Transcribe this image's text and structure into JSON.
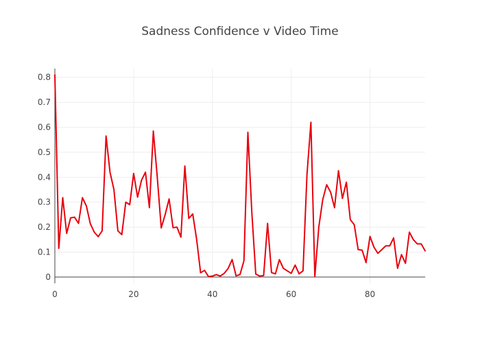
{
  "chart_data": {
    "type": "line",
    "title": "Sadness Confidence v Video Time",
    "xlabel": "",
    "ylabel": "",
    "xlim": [
      0,
      94
    ],
    "ylim": [
      -0.025,
      0.835
    ],
    "xticks": [
      0,
      20,
      40,
      60,
      80
    ],
    "yticks": [
      0,
      0.1,
      0.2,
      0.3,
      0.4,
      0.5,
      0.6,
      0.7,
      0.8
    ],
    "ytick_labels": [
      "0",
      "0.1",
      "0.2",
      "0.3",
      "0.4",
      "0.5",
      "0.6",
      "0.7",
      "0.8"
    ],
    "grid": true,
    "line_color": "#e8000b",
    "series": [
      {
        "x": [
          0,
          1,
          2,
          3,
          4,
          5,
          6,
          7,
          8,
          9,
          10,
          11,
          12,
          13,
          14,
          15,
          16,
          17,
          18,
          19,
          20,
          21,
          22,
          23,
          24,
          25,
          26,
          27,
          28,
          29,
          30,
          31,
          32,
          33,
          34,
          35,
          36,
          37,
          38,
          39,
          40,
          41,
          42,
          43,
          44,
          45,
          46,
          47,
          48,
          49,
          50,
          51,
          52,
          53,
          54,
          55,
          56,
          57,
          58,
          59,
          60,
          61,
          62,
          63,
          64,
          65,
          66,
          67,
          68,
          69,
          70,
          71,
          72,
          73,
          74,
          75,
          76,
          77,
          78,
          79,
          80,
          81,
          82,
          83,
          84,
          85,
          86,
          87,
          88,
          89,
          90,
          91,
          92,
          93,
          94
        ],
        "values": [
          0.81,
          0.115,
          0.318,
          0.175,
          0.237,
          0.24,
          0.215,
          0.318,
          0.285,
          0.214,
          0.18,
          0.162,
          0.185,
          0.565,
          0.42,
          0.35,
          0.185,
          0.17,
          0.3,
          0.29,
          0.415,
          0.32,
          0.388,
          0.42,
          0.278,
          0.585,
          0.4,
          0.197,
          0.25,
          0.313,
          0.198,
          0.2,
          0.16,
          0.445,
          0.235,
          0.253,
          0.15,
          0.017,
          0.027,
          0.002,
          0.004,
          0.01,
          0.004,
          0.015,
          0.035,
          0.07,
          0.005,
          0.01,
          0.065,
          0.58,
          0.26,
          0.012,
          0.004,
          0.006,
          0.215,
          0.018,
          0.013,
          0.07,
          0.035,
          0.025,
          0.015,
          0.048,
          0.013,
          0.025,
          0.41,
          0.62,
          0.002,
          0.2,
          0.31,
          0.37,
          0.34,
          0.278,
          0.426,
          0.315,
          0.38,
          0.23,
          0.21,
          0.11,
          0.108,
          0.058,
          0.163,
          0.12,
          0.095,
          0.11,
          0.125,
          0.125,
          0.157,
          0.035,
          0.09,
          0.055,
          0.18,
          0.15,
          0.133,
          0.133,
          0.105
        ]
      }
    ]
  }
}
